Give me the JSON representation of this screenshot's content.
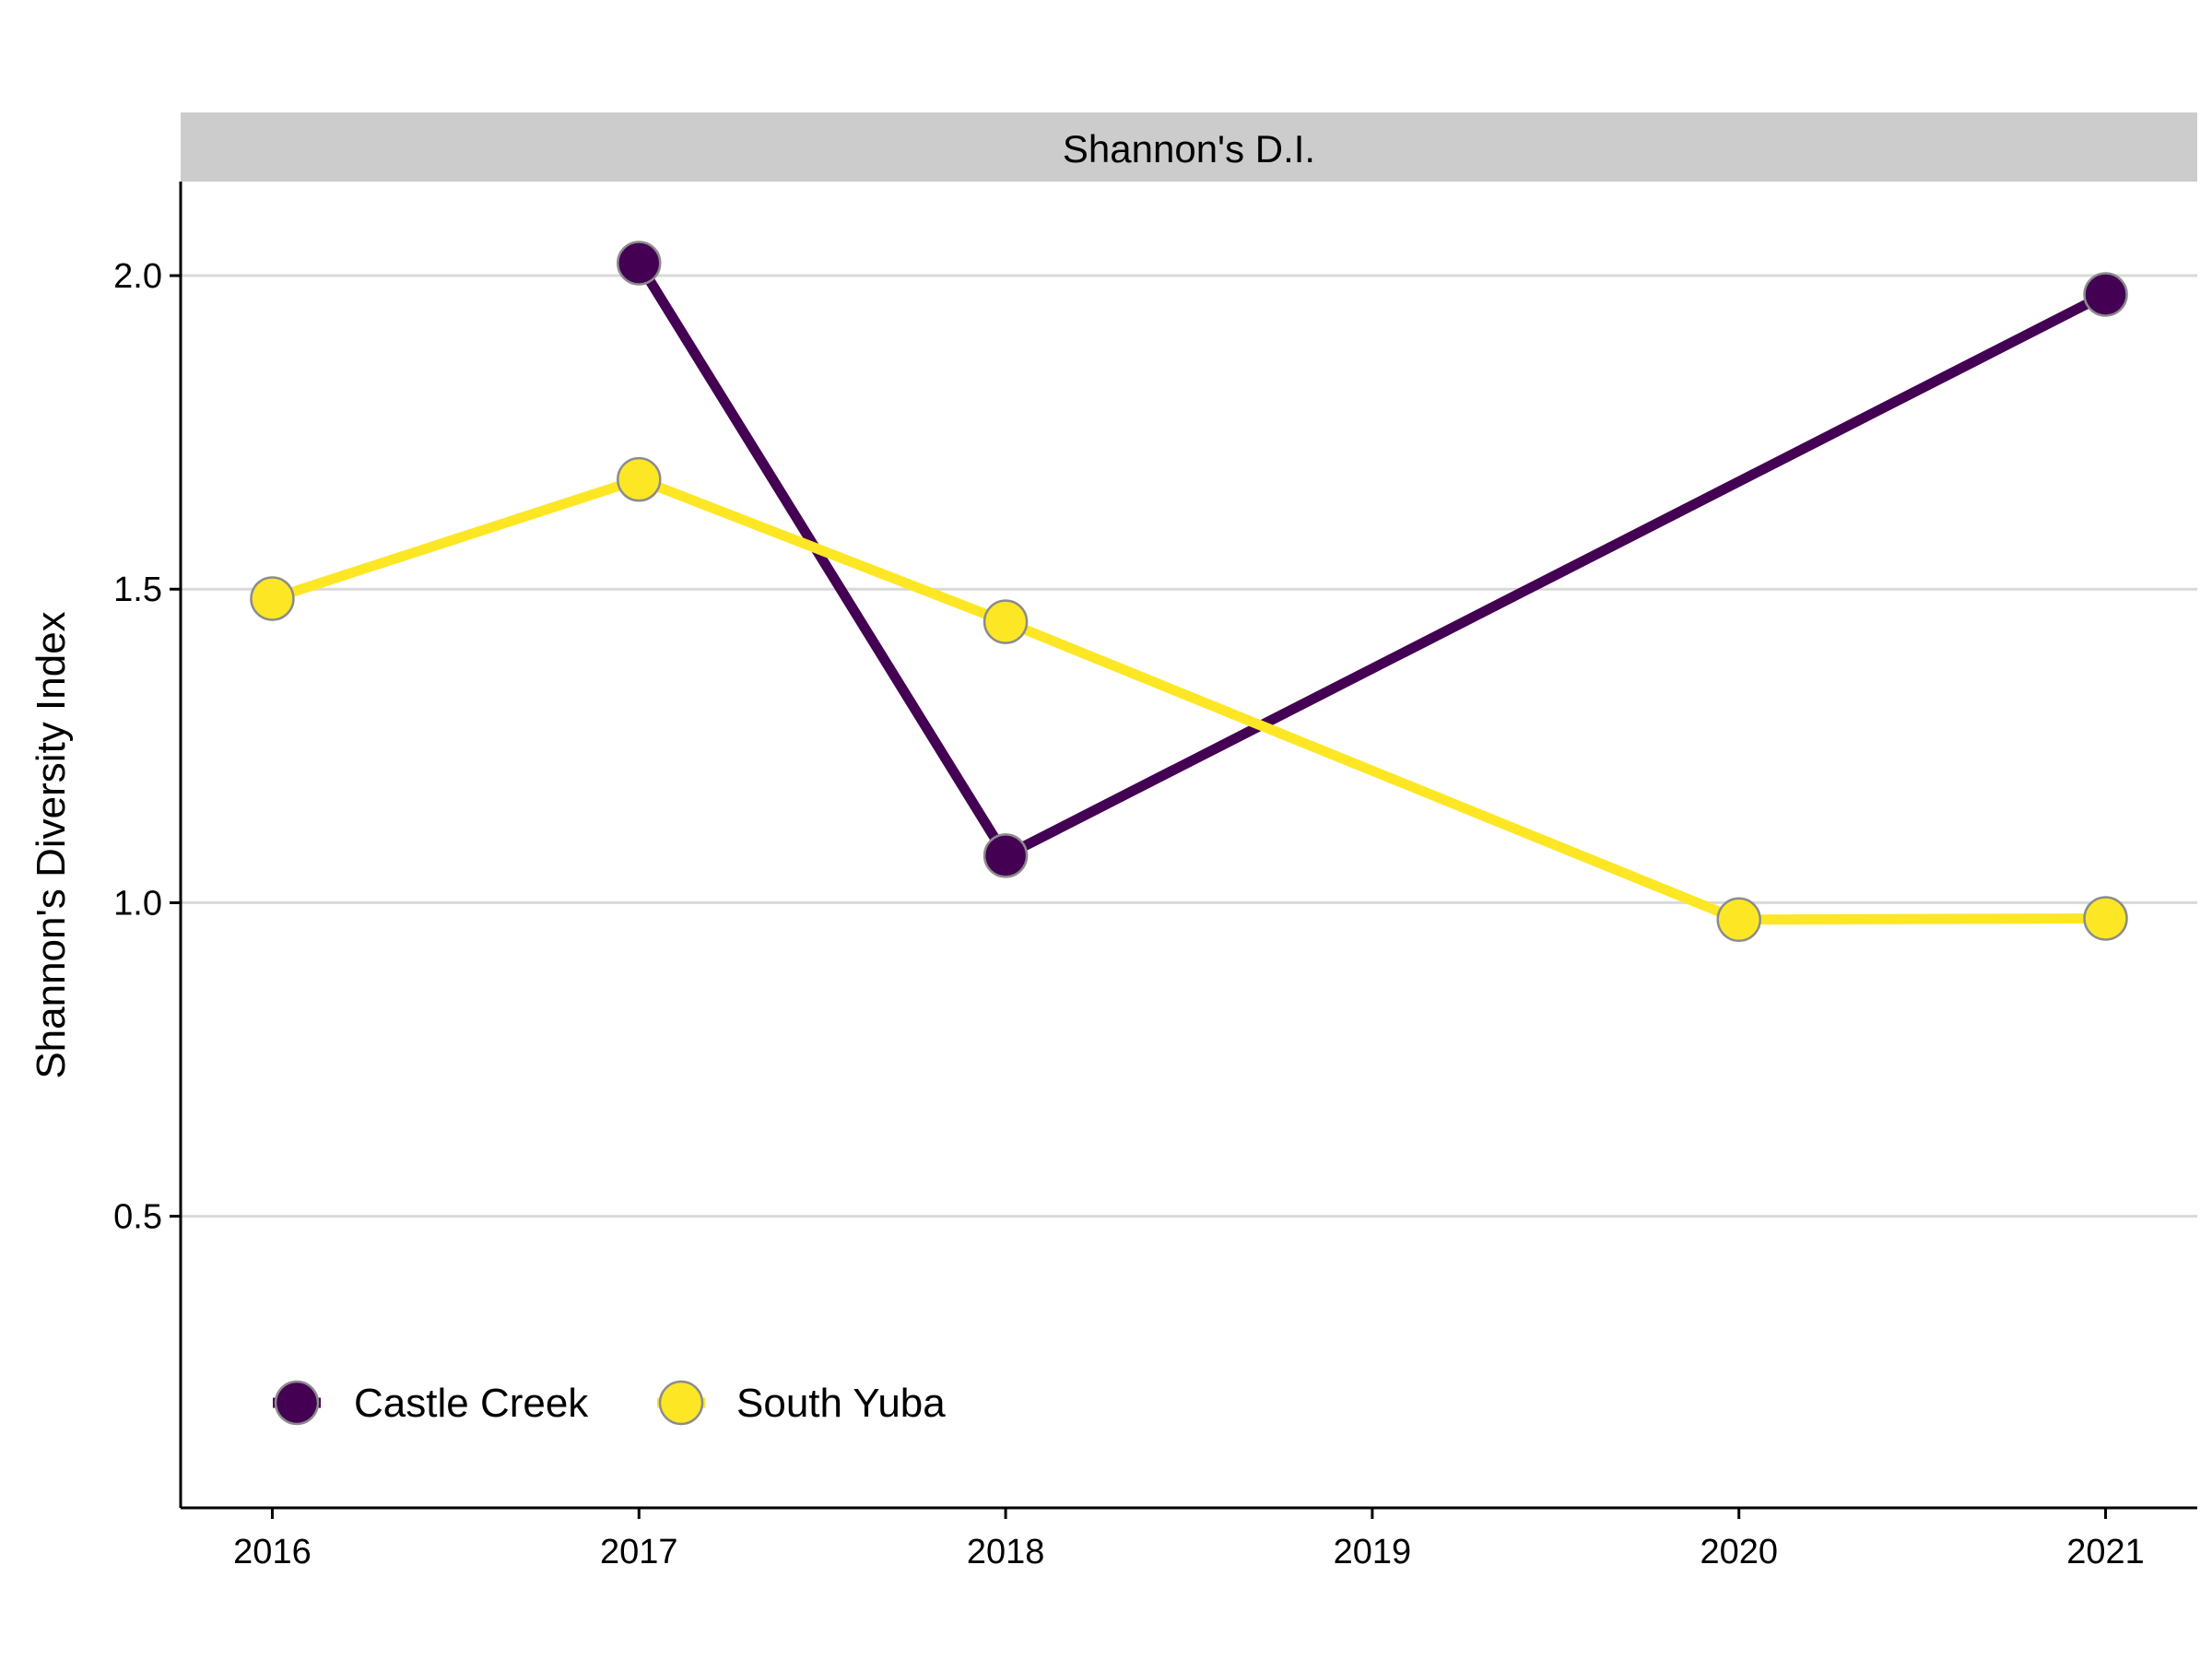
{
  "chart_data": {
    "type": "line",
    "facet_label": "Shannon's D.I.",
    "title": "",
    "xlabel": "",
    "ylabel": "Shannon's Diversity Index",
    "x_ticks": [
      2016,
      2017,
      2018,
      2019,
      2020,
      2021
    ],
    "y_ticks": [
      "0.5",
      "1.0",
      "1.5",
      "2.0"
    ],
    "xlim": [
      2015.75,
      2021.25
    ],
    "ylim": [
      0.035,
      2.15
    ],
    "grid": "horizontal major",
    "legend_position": "bottom-left inside",
    "series": [
      {
        "name": "Castle Creek",
        "color": "#440154",
        "points": [
          {
            "x": 2017,
            "y": 2.02
          },
          {
            "x": 2018,
            "y": 1.075
          },
          {
            "x": 2021,
            "y": 1.97
          }
        ]
      },
      {
        "name": "South Yuba",
        "color": "#FDE725",
        "points": [
          {
            "x": 2016,
            "y": 1.485
          },
          {
            "x": 2017,
            "y": 1.675
          },
          {
            "x": 2018,
            "y": 1.448
          },
          {
            "x": 2020,
            "y": 0.973
          },
          {
            "x": 2021,
            "y": 0.975
          }
        ]
      }
    ]
  }
}
